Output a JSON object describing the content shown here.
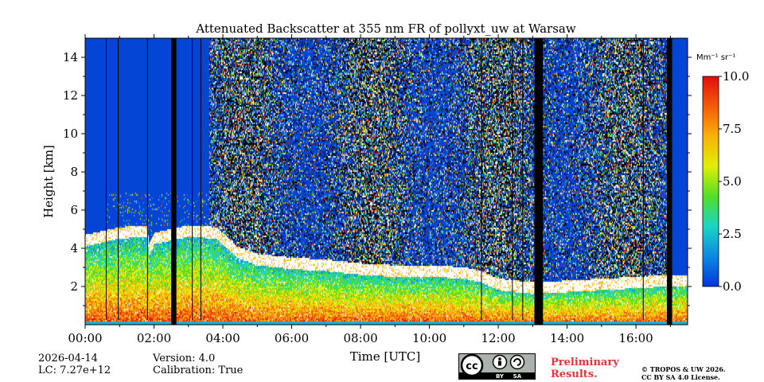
{
  "chart_data": {
    "type": "heatmap",
    "title": "Attenuated Backscatter at 355 nm FR of pollyxt_uw at Warsaw",
    "xlabel": "Time [UTC]",
    "ylabel": "Height [km]",
    "xlim": [
      0,
      17.5
    ],
    "ylim": [
      0,
      15
    ],
    "x_ticks": [
      0,
      2,
      4,
      6,
      8,
      10,
      12,
      14,
      16
    ],
    "x_tick_labels": [
      "00:00",
      "02:00",
      "04:00",
      "06:00",
      "08:00",
      "10:00",
      "12:00",
      "14:00",
      "16:00"
    ],
    "y_ticks": [
      2,
      4,
      6,
      8,
      10,
      12,
      14
    ],
    "y_tick_labels": [
      "2",
      "4",
      "6",
      "8",
      "10",
      "12",
      "14"
    ],
    "colorbar": {
      "unit_label": "Mm⁻¹ sr⁻¹",
      "range": [
        0,
        10
      ],
      "ticks": [
        0,
        2.5,
        5,
        7.5,
        10
      ],
      "tick_labels": [
        "0.0",
        "2.5",
        "5.0",
        "7.5",
        "10.0"
      ],
      "colormap": [
        "#0336d6",
        "#0c89e3",
        "#1bd4c5",
        "#52de27",
        "#e0ef06",
        "#f9b20a",
        "#f45b0a",
        "#e20d0d"
      ]
    },
    "colors": {
      "clear_sky": "#0545d6",
      "no_data": "#000000",
      "cloud": "#ffffff",
      "surface": "#19b0d6"
    },
    "boundary_layer_top_km": [
      [
        0,
        4.5
      ],
      [
        1,
        4.9
      ],
      [
        1.8,
        5.0
      ],
      [
        1.85,
        4.0
      ],
      [
        2.0,
        4.6
      ],
      [
        3.0,
        5.0
      ],
      [
        3.8,
        4.9
      ],
      [
        4.4,
        3.9
      ],
      [
        5.0,
        3.5
      ],
      [
        6.0,
        3.3
      ],
      [
        7.0,
        3.2
      ],
      [
        8.0,
        3.0
      ],
      [
        9.0,
        2.9
      ],
      [
        10.0,
        2.9
      ],
      [
        11.0,
        2.8
      ],
      [
        11.5,
        2.6
      ],
      [
        12.0,
        2.2
      ],
      [
        13.0,
        2.0
      ],
      [
        14.0,
        2.1
      ],
      [
        15.0,
        2.2
      ],
      [
        16.0,
        2.3
      ],
      [
        17.0,
        2.4
      ],
      [
        17.5,
        2.4
      ]
    ],
    "no_data_periods_h": [
      [
        2.5,
        2.65
      ],
      [
        13.05,
        13.3
      ],
      [
        16.9,
        17.05
      ]
    ]
  },
  "footer": {
    "date": "2026-04-14",
    "lc": "LC: 7.27e+12",
    "version": "Version: 4.0",
    "calibration": "Calibration: True",
    "preliminary_line1": "Preliminary",
    "preliminary_line2": "Results.",
    "copyright_line1": "© TROPOS & UW 2026.",
    "copyright_line2": "CC BY SA 4.0 License.",
    "license_badge_by": "BY",
    "license_badge_sa": "SA"
  }
}
